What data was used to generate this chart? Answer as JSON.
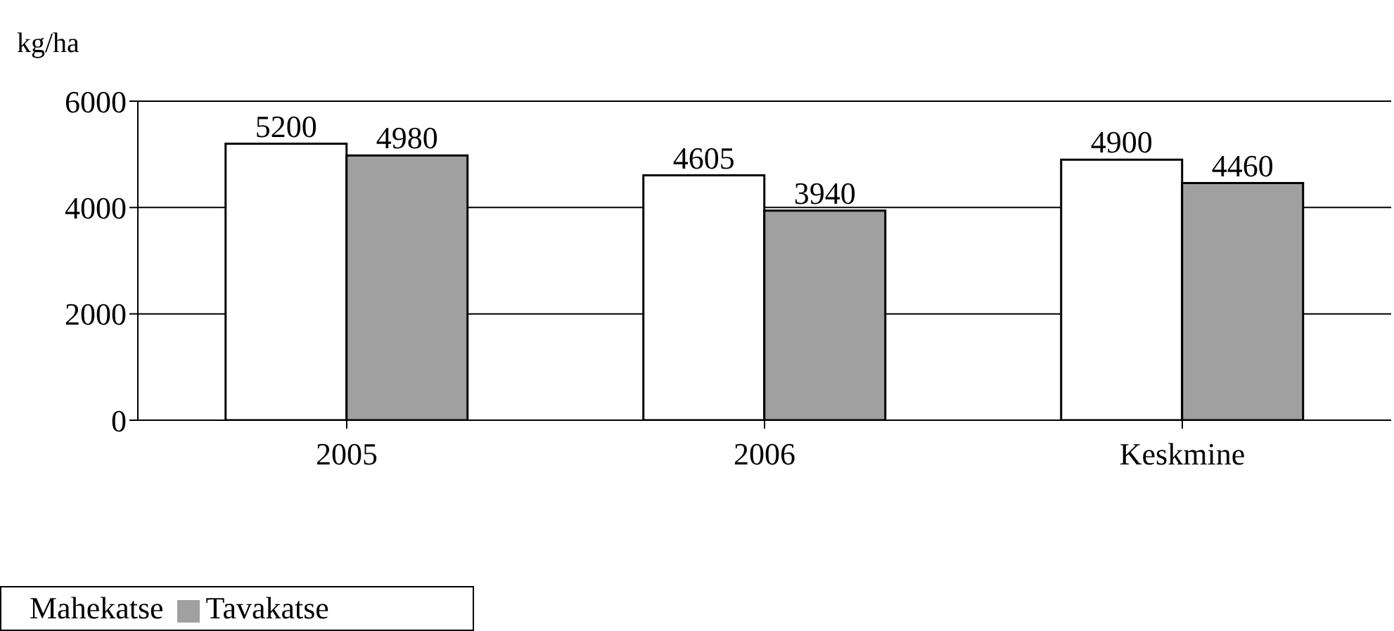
{
  "chart_data": {
    "type": "bar",
    "ylabel": "kg/ha",
    "categories": [
      "2005",
      "2006",
      "Keskmine"
    ],
    "series": [
      {
        "name": "Mahekatse",
        "color": "#ffffff",
        "values": [
          5200,
          4605,
          4900
        ]
      },
      {
        "name": "Tavakatse",
        "color": "#a0a0a0",
        "values": [
          4980,
          3940,
          4460
        ]
      }
    ],
    "ylim": [
      0,
      6000
    ],
    "yticks": [
      0,
      2000,
      4000,
      6000
    ],
    "grid": "y",
    "legend": "bottom left",
    "data_labels": true
  }
}
